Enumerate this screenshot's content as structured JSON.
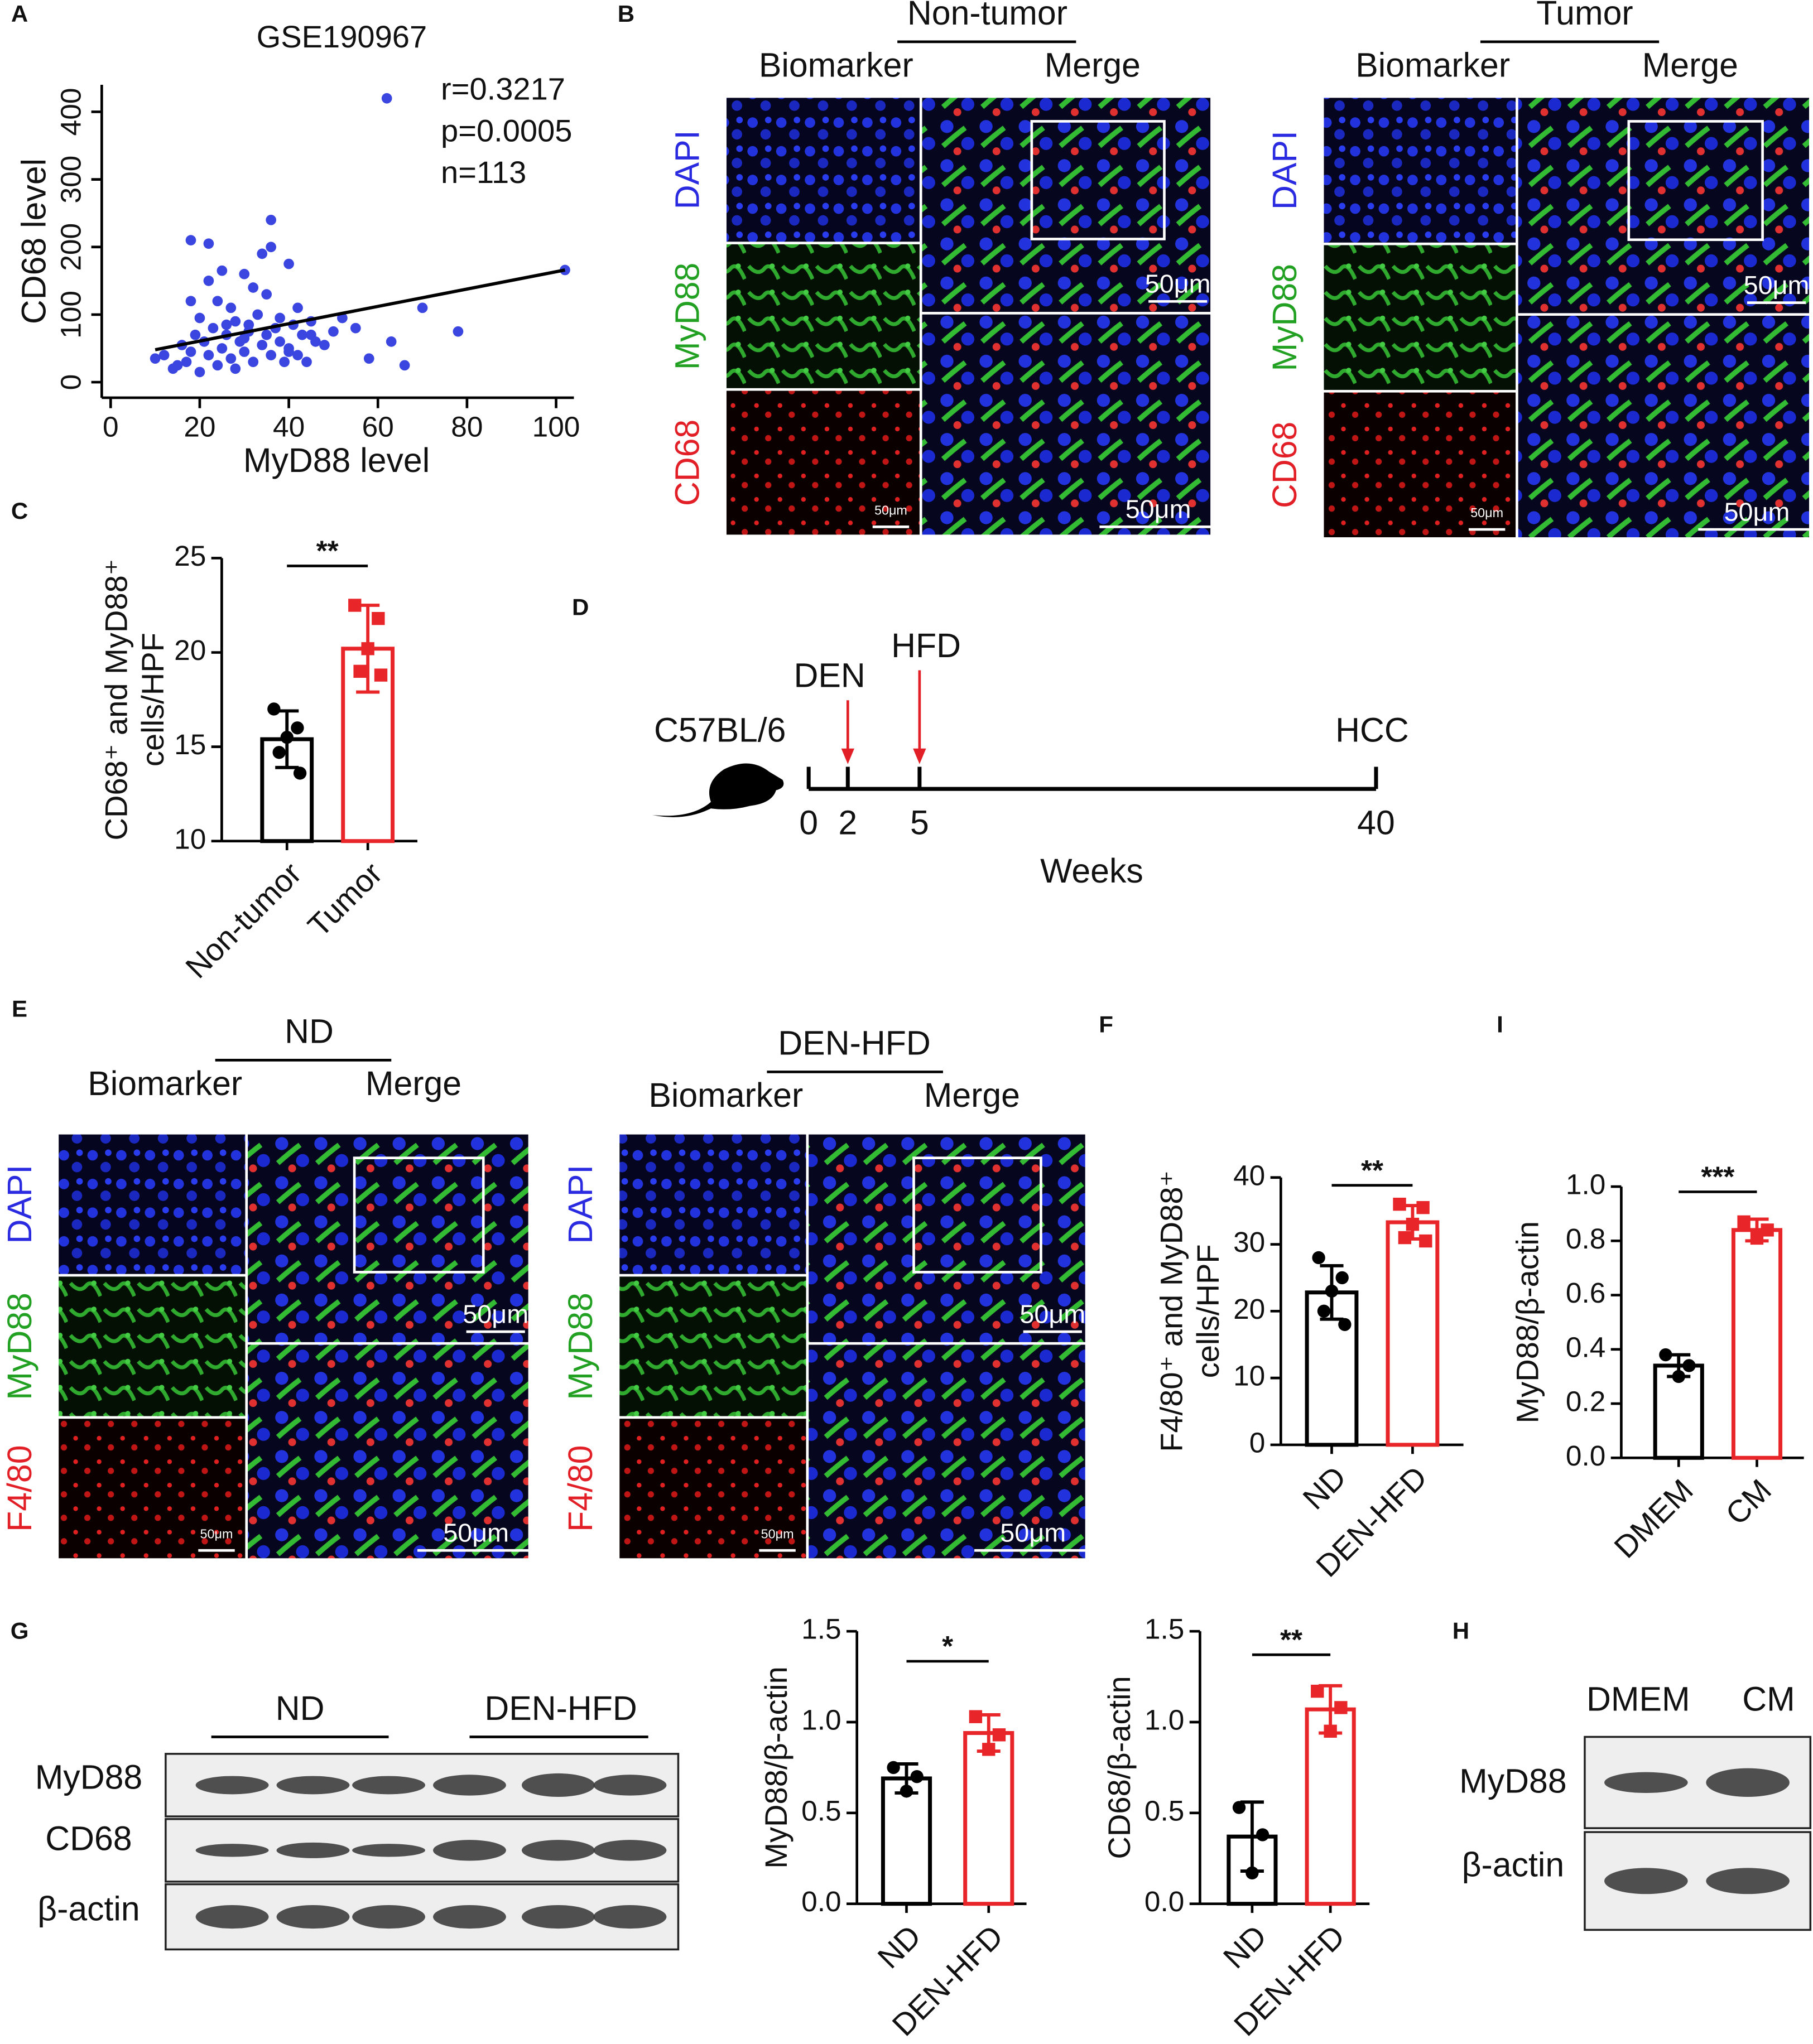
{
  "panel_letters": [
    "A",
    "B",
    "C",
    "D",
    "E",
    "F",
    "G",
    "H",
    "I"
  ],
  "chart_data": [
    {
      "type": "scatter",
      "title": "GSE190967",
      "xlabel": "MyD88 level",
      "ylabel": "CD68 level",
      "color": "#3b46e0",
      "annotations": [
        "r=0.3217",
        "p=0.0005",
        "n=113"
      ],
      "x": [
        10,
        12,
        14,
        15,
        16,
        17,
        18,
        18,
        19,
        20,
        20,
        21,
        22,
        22,
        23,
        24,
        24,
        25,
        25,
        26,
        27,
        27,
        28,
        28,
        29,
        30,
        30,
        31,
        31,
        32,
        32,
        33,
        34,
        34,
        35,
        35,
        36,
        36,
        37,
        38,
        38,
        39,
        40,
        40,
        41,
        42,
        42,
        43,
        44,
        45,
        46,
        48,
        50,
        52,
        55,
        58,
        62,
        66,
        70,
        78,
        102,
        63,
        36,
        18,
        22,
        26,
        30,
        33,
        40,
        45
      ],
      "y": [
        35,
        40,
        20,
        25,
        55,
        30,
        45,
        210,
        70,
        15,
        95,
        60,
        40,
        205,
        80,
        25,
        120,
        50,
        165,
        70,
        35,
        110,
        90,
        20,
        60,
        160,
        45,
        75,
        85,
        30,
        140,
        100,
        55,
        190,
        70,
        130,
        40,
        240,
        80,
        60,
        95,
        30,
        50,
        175,
        85,
        40,
        110,
        70,
        30,
        90,
        60,
        55,
        75,
        95,
        80,
        35,
        420,
        25,
        110,
        75,
        166,
        60,
        200,
        120,
        150,
        85,
        65,
        100,
        45,
        70
      ],
      "trend_line": {
        "x": [
          10,
          102
        ],
        "y": [
          48,
          166
        ]
      },
      "xlim": [
        -2,
        104
      ],
      "ylim": [
        -23,
        440
      ],
      "xticks": [
        0,
        20,
        40,
        60,
        80,
        100
      ],
      "yticks": [
        0,
        100,
        200,
        300,
        400
      ]
    },
    {
      "type": "bar",
      "ylabel": [
        "CD68⁺ and MyD88⁺",
        "cells/HPF"
      ],
      "categories": [
        "Non-tumor",
        "Tumor"
      ],
      "colors": [
        "#000000",
        "#e8262a"
      ],
      "values": [
        15.4,
        20.2
      ],
      "errors": [
        1.5,
        2.3
      ],
      "points": [
        [
          17,
          16,
          15.5,
          14.7,
          13.6
        ],
        [
          22.5,
          21.8,
          20.2,
          19,
          18.8
        ]
      ],
      "significance": "**",
      "ylim": [
        10,
        25
      ],
      "yticks": [
        10,
        15,
        20,
        25
      ]
    },
    {
      "type": "bar",
      "ylabel": [
        "F4/80⁺ and MyD88⁺",
        "cells/HPF"
      ],
      "categories": [
        "ND",
        "DEN-HFD"
      ],
      "colors": [
        "#000000",
        "#e8262a"
      ],
      "values": [
        22.8,
        33.3
      ],
      "errors": [
        4,
        2.5
      ],
      "points": [
        [
          28,
          25,
          23,
          20,
          18
        ],
        [
          36,
          35.5,
          33,
          31,
          30.5
        ]
      ],
      "significance": "**",
      "ylim": [
        0,
        40
      ],
      "yticks": [
        0,
        10,
        20,
        30,
        40
      ]
    },
    {
      "type": "bar",
      "ylabel": [
        "MyD88/β-actin"
      ],
      "categories": [
        "DMEM",
        "CM"
      ],
      "colors": [
        "#000000",
        "#e8262a"
      ],
      "values": [
        0.34,
        0.84
      ],
      "errors": [
        0.04,
        0.04
      ],
      "points": [
        [
          0.38,
          0.34,
          0.3
        ],
        [
          0.87,
          0.84,
          0.81
        ]
      ],
      "significance": "***",
      "ylim": [
        0,
        1
      ],
      "yticks": [
        {
          "value": 0,
          "label": "0.0"
        },
        0.2,
        0.4,
        0.6,
        0.8,
        {
          "value": 1,
          "label": "1.0"
        }
      ]
    },
    {
      "type": "bar",
      "ylabel": [
        "MyD88/β-actin"
      ],
      "categories": [
        "ND",
        "DEN-HFD"
      ],
      "colors": [
        "#000000",
        "#e8262a"
      ],
      "values": [
        0.69,
        0.94
      ],
      "errors": [
        0.08,
        0.1
      ],
      "points": [
        [
          0.75,
          0.7,
          0.62
        ],
        [
          1.03,
          0.93,
          0.85
        ]
      ],
      "significance": "*",
      "ylim": [
        0,
        1.5
      ],
      "yticks": [
        {
          "value": 0,
          "label": "0.0"
        },
        0.5,
        {
          "value": 1,
          "label": "1.0"
        },
        1.5
      ]
    },
    {
      "type": "bar",
      "ylabel": [
        "CD68/β-actin"
      ],
      "categories": [
        "ND",
        "DEN-HFD"
      ],
      "colors": [
        "#000000",
        "#e8262a"
      ],
      "values": [
        0.37,
        1.07
      ],
      "errors": [
        0.19,
        0.13
      ],
      "points": [
        [
          0.53,
          0.38,
          0.17
        ],
        [
          1.17,
          1.08,
          0.95
        ]
      ],
      "significance": "**",
      "ylim": [
        0,
        1.5
      ],
      "yticks": [
        {
          "value": 0,
          "label": "0.0"
        },
        0.5,
        {
          "value": 1,
          "label": "1.0"
        },
        1.5
      ]
    }
  ],
  "panel_b": [
    {
      "title": "Non-tumor",
      "columns": [
        "Biomarker",
        "Merge"
      ],
      "channels": [
        "DAPI",
        "MyD88",
        "CD68"
      ],
      "scale_bars": [
        "50μm",
        "50μm",
        "50μm"
      ]
    },
    {
      "title": "Tumor",
      "columns": [
        "Biomarker",
        "Merge"
      ],
      "channels": [
        "DAPI",
        "MyD88",
        "CD68"
      ],
      "scale_bars": [
        "50μm",
        "50μm",
        "50μm"
      ]
    }
  ],
  "panel_d": {
    "strain": "C57BL/6",
    "events": [
      "DEN",
      "HFD"
    ],
    "endpoint": "HCC",
    "ticks": [
      "0",
      "2",
      "5",
      "40"
    ],
    "xlabel": "Weeks"
  },
  "panel_e": [
    {
      "title": "ND",
      "columns": [
        "Biomarker",
        "Merge"
      ],
      "channels": [
        "DAPI",
        "MyD88",
        "F4/80"
      ],
      "scale_bars": [
        "50μm",
        "50μm",
        "50μm"
      ]
    },
    {
      "title": "DEN-HFD",
      "columns": [
        "Biomarker",
        "Merge"
      ],
      "channels": [
        "DAPI",
        "MyD88",
        "F4/80"
      ],
      "scale_bars": [
        "50μm",
        "50μm",
        "50μm"
      ]
    }
  ],
  "panel_g": {
    "groups": [
      "ND",
      "DEN-HFD"
    ],
    "rows": [
      "MyD88",
      "CD68",
      "β-actin"
    ]
  },
  "panel_h": {
    "lanes": [
      "DMEM",
      "CM"
    ],
    "rows": [
      "MyD88",
      "β-actin"
    ]
  }
}
